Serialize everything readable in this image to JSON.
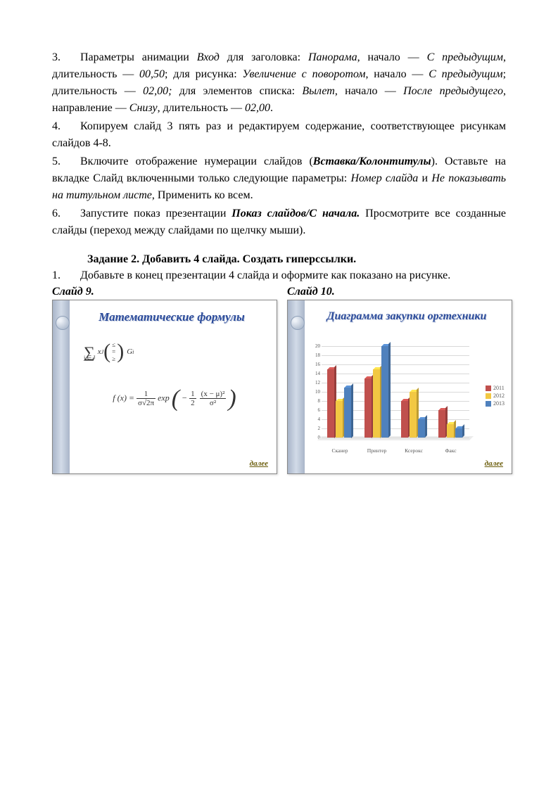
{
  "paragraphs": {
    "p3_pre": "3.",
    "p3_a": "Параметры анимации ",
    "p3_b": "Вход",
    "p3_c": " для заголовка: ",
    "p3_d": "Панорама",
    "p3_e": ", начало — ",
    "p3_f": "С предыдущим",
    "p3_g": ", длительность — ",
    "p3_h": "00,50",
    "p3_i": "; для рисунка: ",
    "p3_j": "Увеличение с поворотом",
    "p3_k": ", начало — ",
    "p3_l": "С предыдущим",
    "p3_m": "; длительность — ",
    "p3_n": "02,00;",
    "p3_o": " для элементов списка: ",
    "p3_p": "Вылет",
    "p3_q": ", начало — ",
    "p3_r": "После предыдущего",
    "p3_s": ", направление — ",
    "p3_t": "Снизу",
    "p3_u": ", длительность — ",
    "p3_v": "02,00",
    "p3_w": ".",
    "p4_pre": "4.",
    "p4": "Копируем слайд 3 пять раз и редактируем содержание, соответствующее рисункам слайдов 4-8.",
    "p5_pre": "5.",
    "p5_a": "Включите отображение нумерации слайдов (",
    "p5_b": "Вставка/Колонтитулы",
    "p5_c": "). Оставьте на вкладке Слайд включенными только следующие параметры: ",
    "p5_d": "Номер слайда",
    "p5_e": " и ",
    "p5_f": "Не показывать на титульном листе",
    "p5_g": ", Применить ко всем.",
    "p6_pre": "6.",
    "p6_a": "Запустите показ презентации ",
    "p6_b": "Показ слайдов/С начала.",
    "p6_c": " Просмотрите все созданные слайды (переход между слайдами по щелчку мыши).",
    "task2": "Задание 2. Добавить 4 слайда. Создать гиперссылки.",
    "p1_pre": "1.",
    "p1": "Добавьте в конец презентации 4 слайда и оформите как показано на рисунке."
  },
  "slide9": {
    "label": "Слайд 9.",
    "title": "Математические формулы",
    "dalee": "далее",
    "formula1": {
      "sigma": "∑",
      "sub": "j ∈ J",
      "xj": "x",
      "xjsub": "J",
      "rel1": "≤",
      "rel2": "=",
      "rel3": "≥",
      "G": "G",
      "Gi": "i"
    },
    "formula2": {
      "lhs": "f (x) = ",
      "frac1_top": "1",
      "frac1_bot": "σ√2π",
      "exp": " exp",
      "neg": "− ",
      "frac2_top": "1",
      "frac2_bot": "2",
      "frac3_top": "(x − μ)²",
      "frac3_bot": "σ²"
    }
  },
  "slide10": {
    "label": "Слайд 10.",
    "title": "Диаграмма закупки оргтехники",
    "dalee": "далее",
    "chart": {
      "type": "bar3d-grouped",
      "categories": [
        "Сканер",
        "Принтер",
        "Ксерокс",
        "Факс"
      ],
      "series": [
        "2011",
        "2012",
        "2013"
      ],
      "series_colors": [
        "#c0504d",
        "#f2c843",
        "#4f81bd"
      ],
      "values": [
        [
          15,
          8,
          11
        ],
        [
          13,
          15,
          20
        ],
        [
          8,
          10,
          4
        ],
        [
          6,
          3,
          2
        ]
      ],
      "ylim": [
        0,
        20
      ],
      "ytick_step": 2,
      "background_color": "#ffffff",
      "grid_color": "#d9d9d9",
      "label_fontsize": 7.5
    }
  }
}
